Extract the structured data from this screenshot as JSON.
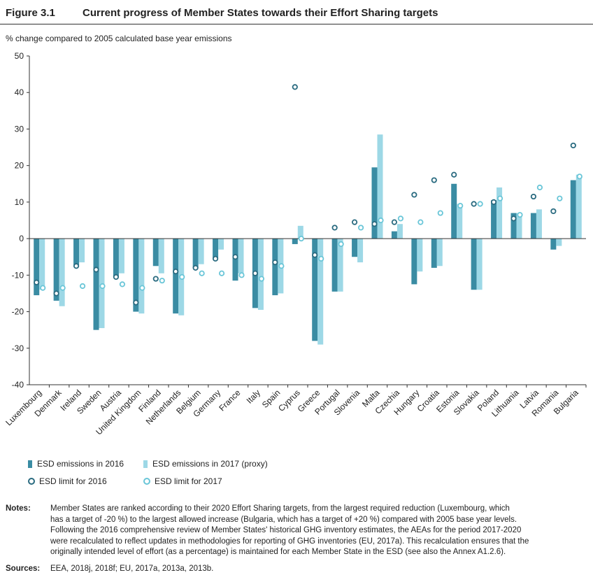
{
  "header": {
    "figure_label": "Figure 3.1",
    "title": "Current progress of Member States towards their Effort Sharing targets"
  },
  "chart_data": {
    "type": "bar",
    "title": "Current progress of Member States towards their Effort Sharing targets",
    "ylabel": "% change compared to 2005 calculated base year emissions",
    "xlabel": "",
    "ylim": [
      -40,
      50
    ],
    "yticks": [
      50,
      40,
      30,
      20,
      10,
      0,
      -10,
      -20,
      -30,
      -40
    ],
    "grid": false,
    "legend_position": "bottom-left",
    "categories": [
      "Luxembourg",
      "Denmark",
      "Ireland",
      "Sweden",
      "Austria",
      "United Kingdom",
      "Finland",
      "Netherlands",
      "Belgium",
      "Germany",
      "France",
      "Italy",
      "Spain",
      "Cyprus",
      "Greece",
      "Portugal",
      "Slovenia",
      "Malta",
      "Czechia",
      "Hungary",
      "Croatia",
      "Estonia",
      "Slovakia",
      "Poland",
      "Lithuania",
      "Latvia",
      "Romania",
      "Bulgaria"
    ],
    "series": [
      {
        "name": "ESD emissions in 2016",
        "kind": "bar",
        "color": "#3a8ca3",
        "values": [
          -15.5,
          -17,
          -7.5,
          -25,
          -10.5,
          -20,
          -7.5,
          -20.5,
          -8,
          -5.5,
          -11.5,
          -19,
          -15.5,
          -1.5,
          -28,
          -14.5,
          -5,
          19.5,
          2,
          -12.5,
          -8,
          15,
          -14,
          10.5,
          7,
          7,
          -3,
          16
        ]
      },
      {
        "name": "ESD emissions in 2017 (proxy)",
        "kind": "bar",
        "color": "#9dd8e6",
        "values": [
          -14,
          -18.5,
          -6.5,
          -24.5,
          -9.5,
          -20.5,
          -9.5,
          -21,
          -7,
          -3,
          -9.5,
          -19.5,
          -15,
          3.5,
          -29,
          -14.5,
          -6.5,
          28.5,
          4,
          -9,
          -7.5,
          9.5,
          -14,
          14,
          7,
          8,
          -2,
          17.5
        ]
      },
      {
        "name": "ESD limit for 2016",
        "kind": "marker",
        "color": "#2a6b80",
        "values": [
          -12,
          -15,
          -7.5,
          -8.5,
          -10.5,
          -17.5,
          -11,
          -9,
          -8,
          -5.5,
          -5,
          -9.5,
          -6.5,
          41.5,
          -4.5,
          3,
          4.5,
          4,
          4.5,
          12,
          16,
          17.5,
          9.5,
          10,
          5.5,
          11.5,
          7.5,
          25.5
        ]
      },
      {
        "name": "ESD limit for 2017",
        "kind": "marker",
        "color": "#6ac6d8",
        "values": [
          -13.5,
          -13.5,
          -13,
          -13,
          -12.5,
          -13.5,
          -11.5,
          -10.5,
          -9.5,
          -9.5,
          -10,
          -11,
          -7.5,
          0,
          -5.5,
          -1.5,
          3,
          5,
          5.5,
          4.5,
          7,
          9,
          9.5,
          11,
          6.5,
          14,
          11,
          17
        ]
      }
    ]
  },
  "legend": [
    {
      "label": "ESD emissions in 2016",
      "kind": "bar",
      "color": "#3a8ca3"
    },
    {
      "label": "ESD emissions in 2017 (proxy)",
      "kind": "bar",
      "color": "#9dd8e6"
    },
    {
      "label": "ESD limit for 2016",
      "kind": "marker",
      "color": "#2a6b80"
    },
    {
      "label": "ESD limit for 2017",
      "kind": "marker",
      "color": "#6ac6d8"
    }
  ],
  "notes": {
    "notes_label": "Notes:",
    "notes_lines": [
      "Member States are ranked according to their 2020 Effort Sharing targets, from the largest required reduction (Luxembourg, which",
      "has a target of -20 %) to the largest allowed increase (Bulgaria, which has a target of +20 %) compared with 2005 base year levels.",
      "Following the 2016 comprehensive review of Member States' historical GHG inventory estimates, the AEAs for the period 2017-2020",
      "were recalculated to reflect updates in methodologies for reporting of GHG inventories (EU, 2017a). This recalculation ensures that the",
      "originally intended level of effort (as a percentage) is maintained for each Member State in the ESD (see also the Annex A1.2.6)."
    ],
    "sources_label": "Sources:",
    "sources_text": "EEA, 2018j, 2018f; EU, 2017a, 2013a, 2013b."
  }
}
